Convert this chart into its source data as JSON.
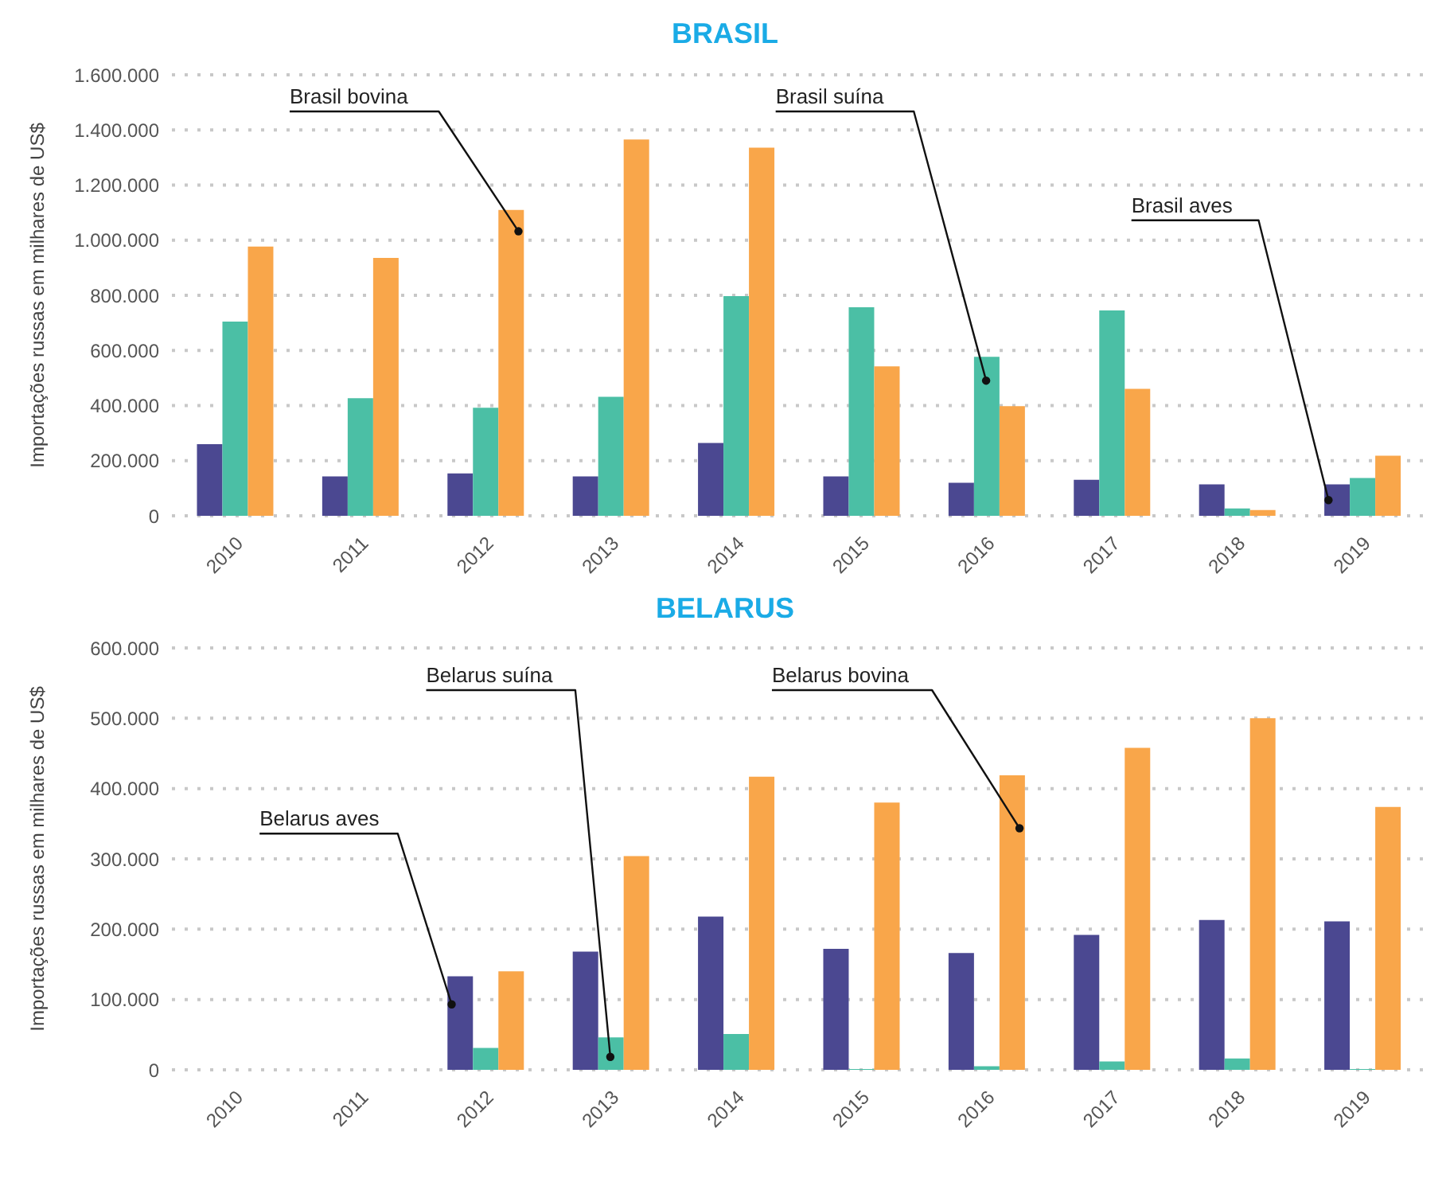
{
  "chart_data": [
    {
      "type": "bar",
      "title": "BRASIL",
      "ylabel": "Importações russas em milhares de US$",
      "categories": [
        "2010",
        "2011",
        "2012",
        "2013",
        "2014",
        "2015",
        "2016",
        "2017",
        "2018",
        "2019"
      ],
      "series": [
        {
          "name": "Brasil aves",
          "color": "#4b4891",
          "values": [
            260000,
            143000,
            154000,
            143000,
            264000,
            143000,
            120000,
            131000,
            114000,
            114000
          ]
        },
        {
          "name": "Brasil suína",
          "color": "#4bbfa5",
          "values": [
            705000,
            427000,
            392000,
            432000,
            797000,
            757000,
            577000,
            745000,
            27000,
            137000
          ]
        },
        {
          "name": "Brasil bovina",
          "color": "#f9a64a",
          "values": [
            977000,
            936000,
            1110000,
            1365000,
            1336000,
            542000,
            398000,
            461000,
            21000,
            218000
          ]
        }
      ],
      "ylim": [
        0,
        1600000
      ],
      "yticks": [
        {
          "value": 0,
          "label": "0"
        },
        {
          "value": 200000,
          "label": "200.000"
        },
        {
          "value": 400000,
          "label": "400.000"
        },
        {
          "value": 600000,
          "label": "600.000"
        },
        {
          "value": 800000,
          "label": "800.000"
        },
        {
          "value": 1000000,
          "label": "1.000.000"
        },
        {
          "value": 1200000,
          "label": "1.200.000"
        },
        {
          "value": 1400000,
          "label": "1.400.000"
        },
        {
          "value": 1600000,
          "label": "1.600.000"
        }
      ],
      "grid": "y",
      "legend": false
    },
    {
      "type": "bar",
      "title": "BELARUS",
      "ylabel": "Importações russas em milhares de US$",
      "categories": [
        "2010",
        "2011",
        "2012",
        "2013",
        "2014",
        "2015",
        "2016",
        "2017",
        "2018",
        "2019"
      ],
      "series": [
        {
          "name": "Belarus aves",
          "color": "#4b4891",
          "values": [
            null,
            null,
            133000,
            168000,
            218000,
            172000,
            166000,
            192000,
            213000,
            211000
          ]
        },
        {
          "name": "Belarus suína",
          "color": "#4bbfa5",
          "values": [
            null,
            null,
            31000,
            46000,
            51000,
            1000,
            5000,
            12000,
            16000,
            1000
          ]
        },
        {
          "name": "Belarus bovina",
          "color": "#f9a64a",
          "values": [
            null,
            null,
            140000,
            304000,
            417000,
            380000,
            419000,
            458000,
            500000,
            374000
          ]
        }
      ],
      "ylim": [
        0,
        600000
      ],
      "yticks": [
        {
          "value": 0,
          "label": "0"
        },
        {
          "value": 100000,
          "label": "100.000"
        },
        {
          "value": 200000,
          "label": "200.000"
        },
        {
          "value": 300000,
          "label": "300.000"
        },
        {
          "value": 400000,
          "label": "400.000"
        },
        {
          "value": 500000,
          "label": "500.000"
        },
        {
          "value": 600000,
          "label": "600.000"
        }
      ],
      "grid": "y",
      "legend": false
    }
  ]
}
